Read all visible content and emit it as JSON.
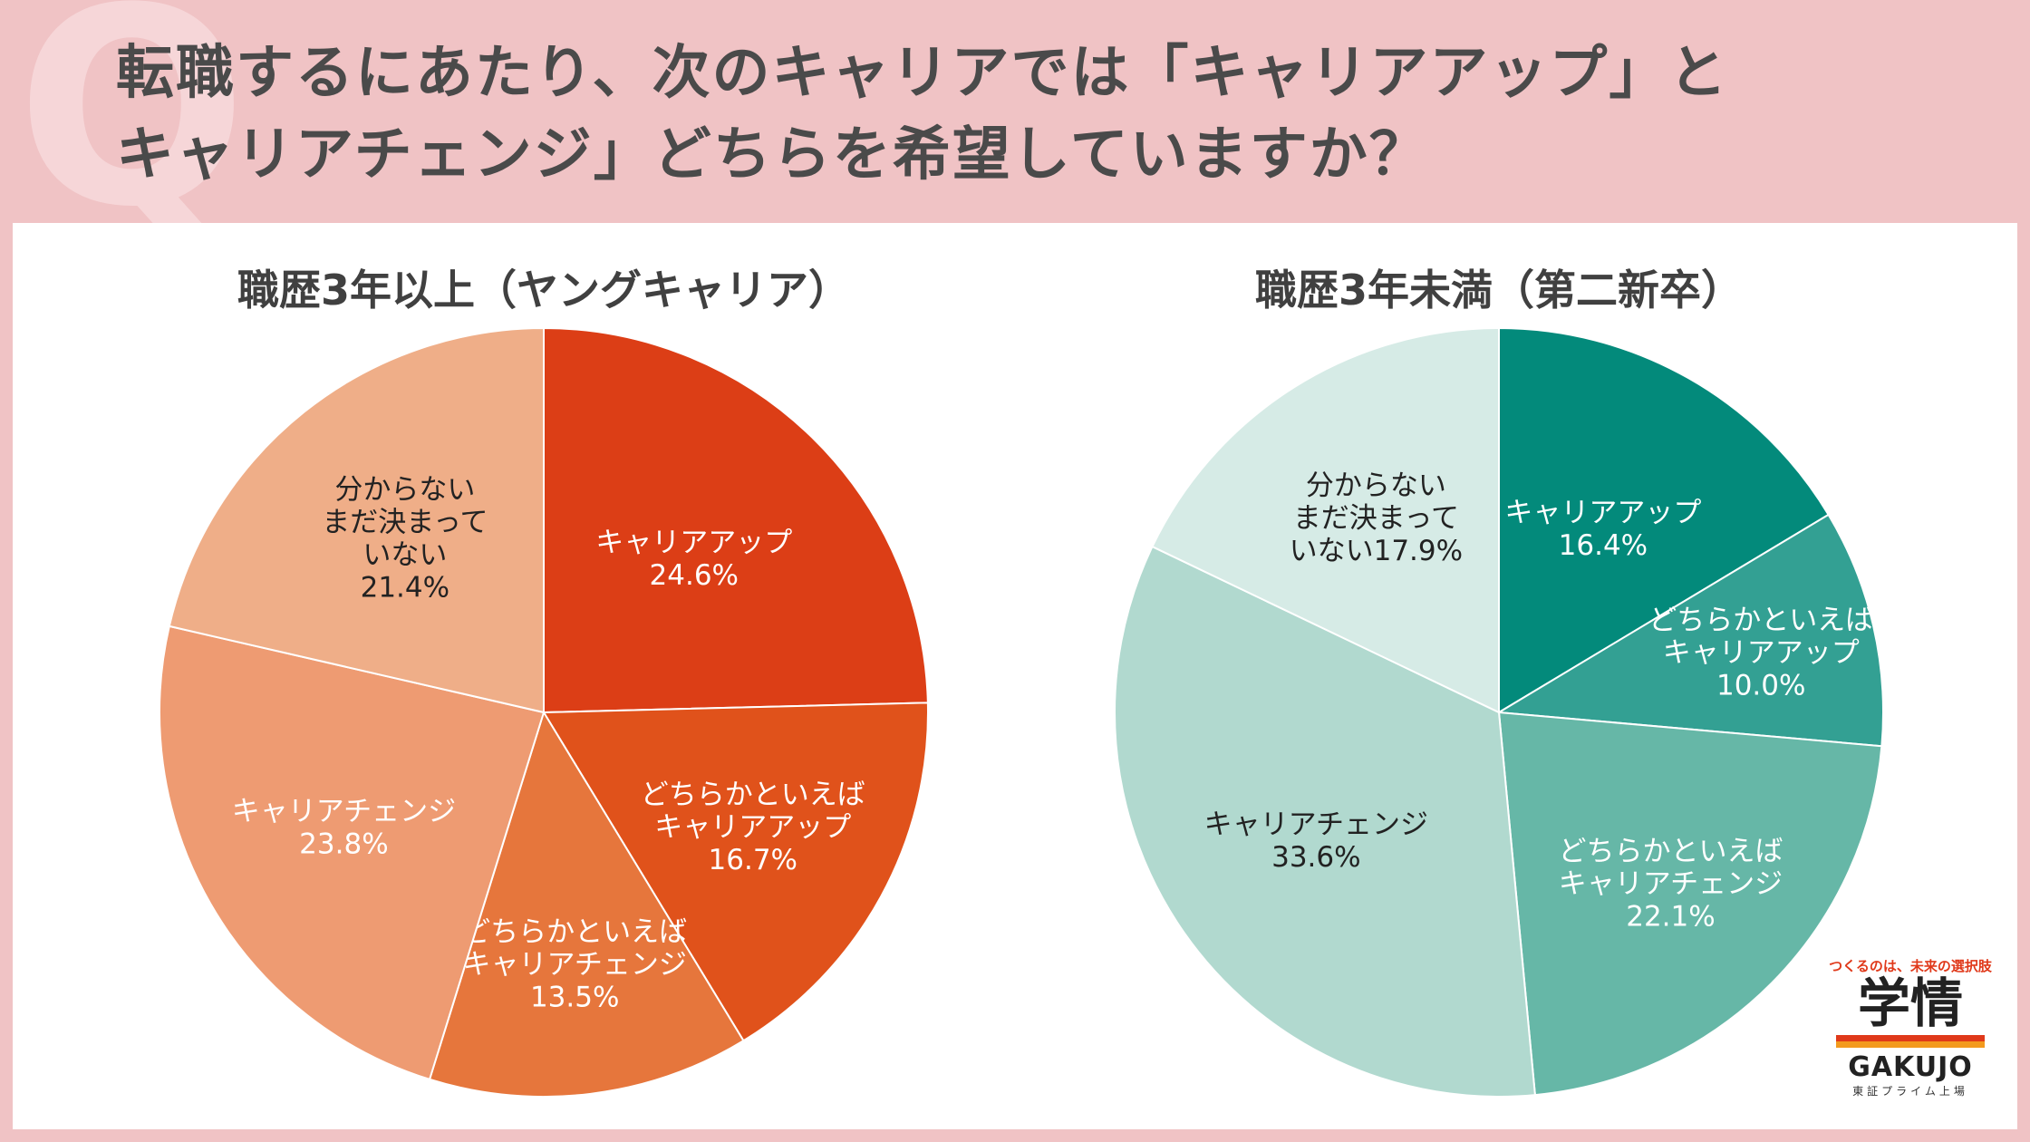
{
  "header": {
    "q_mark": "Q",
    "title_line1": "転職するにあたり、次のキャリアでは「キャリアアップ」と",
    "title_line2": "キャリアチェンジ」どちらを希望していますか？"
  },
  "chart_data": [
    {
      "type": "pie",
      "title": "職歴3年以上（ヤングキャリア）",
      "slices": [
        {
          "name": "キャリアアップ",
          "value": 24.6,
          "value_label": "24.6%",
          "color": "#dc3e16",
          "label_lines": [
            "キャリアアップ",
            "24.6%"
          ],
          "text_color": "#ffffff"
        },
        {
          "name": "どちらかといえばキャリアアップ",
          "value": 16.7,
          "value_label": "16.7%",
          "color": "#e0521b",
          "label_lines": [
            "どちらかといえば",
            "キャリアアップ",
            "16.7%"
          ],
          "text_color": "#ffffff"
        },
        {
          "name": "どちらかといえばキャリアチェンジ",
          "value": 13.5,
          "value_label": "13.5%",
          "color": "#e6763c",
          "label_lines": [
            "どちらかといえば",
            "キャリアチェンジ",
            "13.5%"
          ],
          "text_color": "#ffffff"
        },
        {
          "name": "キャリアチェンジ",
          "value": 23.8,
          "value_label": "23.8%",
          "color": "#ee9b72",
          "label_lines": [
            "キャリアチェンジ",
            "23.8%"
          ],
          "text_color": "#ffffff"
        },
        {
          "name": "分からない まだ決まっていない",
          "value": 21.4,
          "value_label": "21.4%",
          "color": "#efae88",
          "label_lines": [
            "分からない",
            "まだ決まって",
            "いない",
            "21.4%"
          ],
          "text_color": "#222222"
        }
      ]
    },
    {
      "type": "pie",
      "title": "職歴3年未満（第二新卒）",
      "slices": [
        {
          "name": "キャリアアップ",
          "value": 16.4,
          "value_label": "16.4%",
          "color": "#038a7b",
          "label_lines": [
            "キャリアアップ",
            "16.4%"
          ],
          "text_color": "#ffffff"
        },
        {
          "name": "どちらかといえばキャリアアップ",
          "value": 10.0,
          "value_label": "10.0%",
          "color": "#33a093",
          "label_lines": [
            "どちらかといえば",
            "キャリアアップ",
            "10.0%"
          ],
          "text_color": "#ffffff"
        },
        {
          "name": "どちらかといえばキャリアチェンジ",
          "value": 22.1,
          "value_label": "22.1%",
          "color": "#66b7a7",
          "label_lines": [
            "どちらかといえば",
            "キャリアチェンジ",
            "22.1%"
          ],
          "text_color": "#ffffff"
        },
        {
          "name": "キャリアチェンジ",
          "value": 33.6,
          "value_label": "33.6%",
          "color": "#b1d9cf",
          "label_lines": [
            "キャリアチェンジ",
            "33.6%"
          ],
          "text_color": "#222222"
        },
        {
          "name": "分からない まだ決まっていない",
          "value": 17.9,
          "value_label": "17.9%",
          "color": "#d6ebe6",
          "label_lines": [
            "分からない",
            "まだ決まって",
            "いない17.9%"
          ],
          "text_color": "#222222"
        }
      ]
    }
  ],
  "logo": {
    "tagline": "つくるのは、未来の選択肢",
    "name": "学情",
    "name_en": "GAKUJO",
    "sub": "東証プライム上場"
  }
}
